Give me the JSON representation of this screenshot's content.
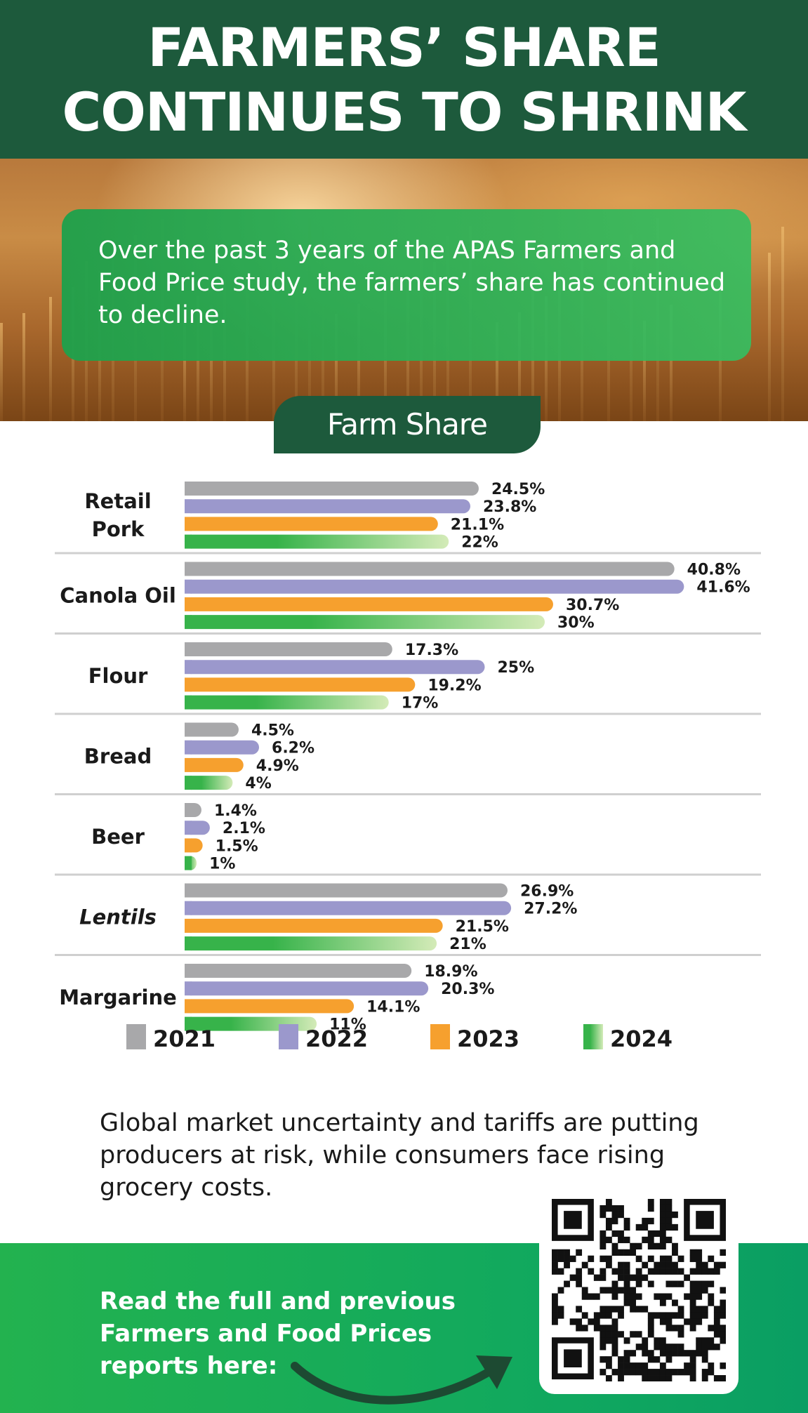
{
  "header": {
    "title_line1": "FARMERS’ SHARE",
    "title_line2": "CONTINUES TO SHRINK"
  },
  "intro": {
    "text": "Over the past 3 years of the APAS Farmers and Food Price study, the farmers’ share has continued to decline."
  },
  "chart_data": {
    "type": "bar",
    "orientation": "horizontal",
    "title": "Farm Share",
    "categories": [
      "Retail Pork",
      "Canola Oil",
      "Flour",
      "Bread",
      "Beer",
      "Lentils",
      "Margarine"
    ],
    "category_lines": [
      [
        "Retail",
        "Pork"
      ],
      [
        "Canola Oil"
      ],
      [
        "Flour"
      ],
      [
        "Bread"
      ],
      [
        "Beer"
      ],
      [
        "Lentils"
      ],
      [
        "Margarine"
      ]
    ],
    "italic_categories": [
      "Lentils"
    ],
    "unit": "%",
    "series": [
      {
        "name": "2021",
        "color": "#a8a8aa",
        "values": [
          24.5,
          40.8,
          17.3,
          4.5,
          1.4,
          26.9,
          18.9
        ],
        "labels": [
          "24.5%",
          "40.8%",
          "17.3%",
          "4.5%",
          "1.4%",
          "26.9%",
          "18.9%"
        ]
      },
      {
        "name": "2022",
        "color": "#9b98cc",
        "values": [
          23.8,
          41.6,
          25,
          6.2,
          2.1,
          27.2,
          20.3
        ],
        "labels": [
          "23.8%",
          "41.6%",
          "25%",
          "6.2%",
          "2.1%",
          "27.2%",
          "20.3%"
        ]
      },
      {
        "name": "2023",
        "color": "#f6a02e",
        "values": [
          21.1,
          30.7,
          19.2,
          4.9,
          1.5,
          21.5,
          14.1
        ],
        "labels": [
          "21.1%",
          "30.7%",
          "19.2%",
          "4.9%",
          "1.5%",
          "21.5%",
          "14.1%"
        ]
      },
      {
        "name": "2024",
        "color": "#37b34a",
        "color_end": "#d4ebb8",
        "values": [
          22,
          30,
          17,
          4,
          1,
          21,
          11
        ],
        "labels": [
          "22%",
          "30%",
          "17%",
          "4%",
          "1%",
          "21%",
          "11%"
        ]
      }
    ],
    "legend_position": "bottom"
  },
  "closing": {
    "text": "Global market uncertainty and tariffs are putting producers at risk, while consumers face rising grocery costs."
  },
  "footer": {
    "cta_text": "Read the full and previous Farmers and Food Prices reports here:"
  },
  "colors": {
    "dark_green": "#1d5a3c",
    "bright_green": "#23b24f"
  }
}
